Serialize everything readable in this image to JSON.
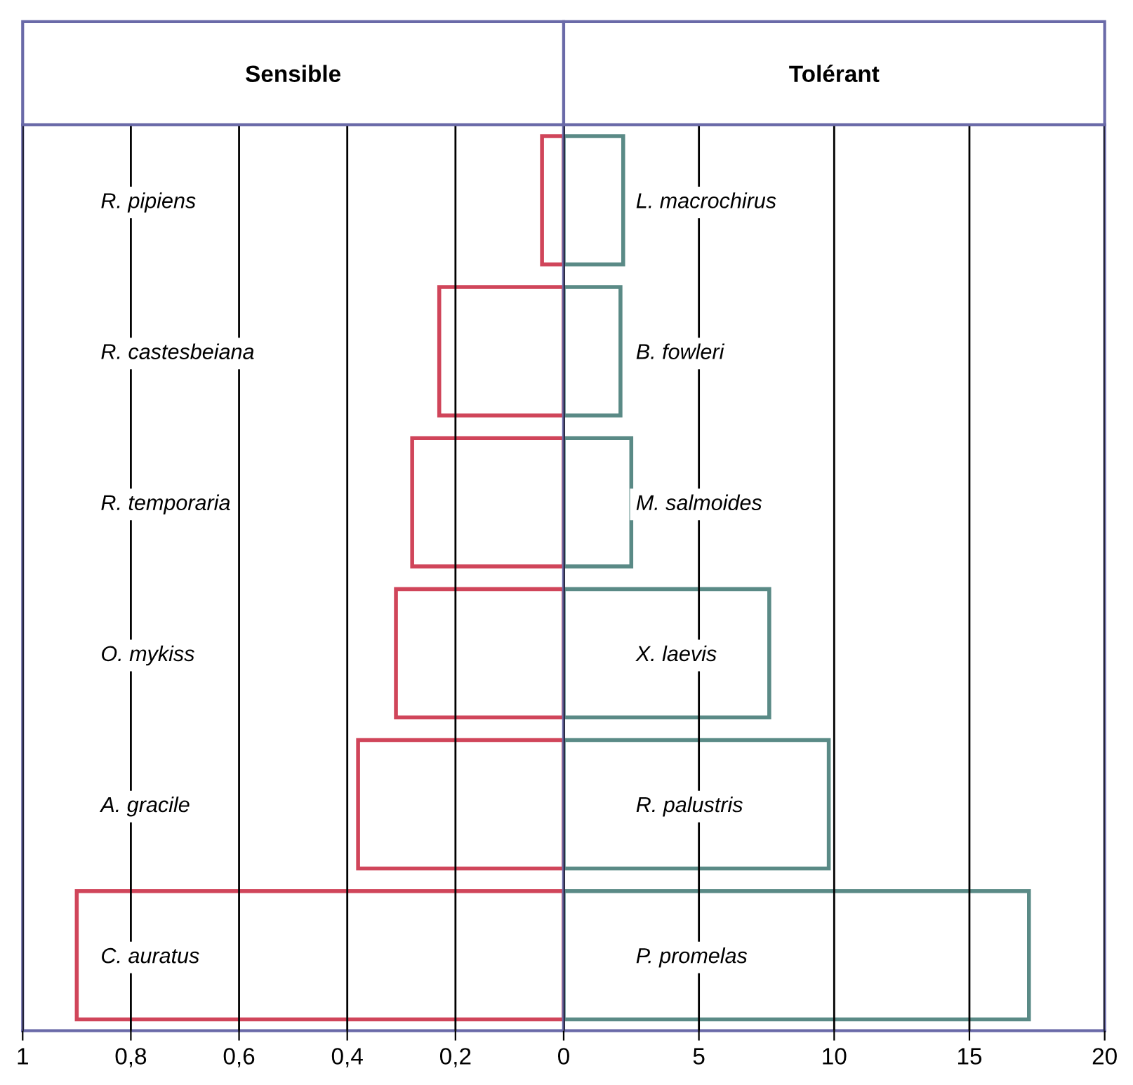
{
  "chart_data": [
    {
      "type": "bar",
      "orientation": "horizontal",
      "title": "Sensible",
      "categories": [
        "R. pipiens",
        "R. castesbeiana",
        "R. temporaria",
        "O. mykiss",
        "A. gracile",
        "C. auratus"
      ],
      "series": [
        {
          "color": "#d0455a",
          "values": [
            0.04,
            0.23,
            0.28,
            0.31,
            0.38,
            0.9
          ]
        }
      ],
      "xlim": [
        1,
        0
      ],
      "xticks": [
        1,
        {
          "value": 0.8,
          "label": "0,8"
        },
        {
          "value": 0.6,
          "label": "0,6"
        },
        {
          "value": 0.4,
          "label": "0,4"
        },
        {
          "value": 0.2,
          "label": "0,2"
        }
      ],
      "grid": "x"
    },
    {
      "type": "bar",
      "orientation": "horizontal",
      "title": "Tolérant",
      "categories": [
        "L. macrochirus",
        "B. fowleri",
        "M. salmoides",
        "X. laevis",
        "R. palustris",
        "P. promelas"
      ],
      "series": [
        {
          "color": "#5a8a86",
          "values": [
            2.2,
            2.1,
            2.5,
            7.6,
            9.8,
            17.2
          ]
        }
      ],
      "xlim": [
        0,
        20
      ],
      "xticks": [
        0,
        5,
        10,
        15,
        20
      ],
      "grid": "x"
    }
  ]
}
